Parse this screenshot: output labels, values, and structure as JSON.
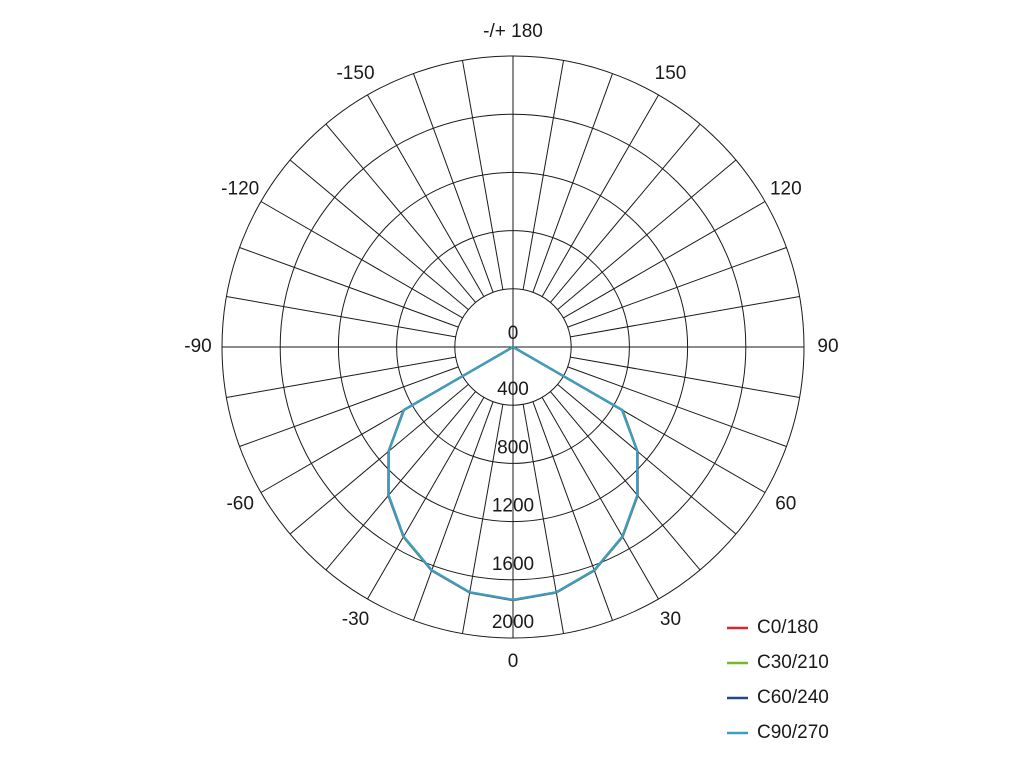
{
  "chart_data": {
    "type": "polar",
    "theta": [
      -90,
      -80,
      -70,
      -60,
      -50,
      -40,
      -30,
      -20,
      -10,
      0,
      10,
      20,
      30,
      40,
      50,
      60,
      70,
      80,
      90
    ],
    "series": [
      {
        "name": "C0/180",
        "color": "#d9262b",
        "values": [
          0,
          0,
          0,
          870,
          1118,
          1333,
          1507,
          1635,
          1714,
          1740,
          1714,
          1635,
          1507,
          1333,
          1118,
          870,
          0,
          0,
          0
        ]
      },
      {
        "name": "C30/210",
        "color": "#7ab829",
        "values": [
          0,
          0,
          0,
          868,
          1116,
          1331,
          1506,
          1634,
          1713,
          1739,
          1713,
          1634,
          1506,
          1331,
          1116,
          868,
          0,
          0,
          0
        ]
      },
      {
        "name": "C60/240",
        "color": "#24478a",
        "values": [
          0,
          0,
          0,
          866,
          1115,
          1330,
          1504,
          1633,
          1712,
          1738,
          1712,
          1633,
          1504,
          1330,
          1115,
          866,
          0,
          0,
          0
        ]
      },
      {
        "name": "C90/270",
        "color": "#3a9fc2",
        "values": [
          0,
          0,
          0,
          865,
          1114,
          1329,
          1503,
          1632,
          1711,
          1737,
          1711,
          1632,
          1503,
          1329,
          1114,
          865,
          0,
          0,
          0
        ]
      }
    ],
    "rlim": [
      0,
      2000
    ],
    "rticks": [
      0,
      400,
      800,
      1200,
      1600,
      2000
    ],
    "thetaticks": [
      -150,
      -120,
      -90,
      -60,
      -30,
      0,
      30,
      60,
      90,
      120,
      150,
      {
        "value": 180,
        "label": "-/+ 180"
      }
    ],
    "grid": true
  }
}
